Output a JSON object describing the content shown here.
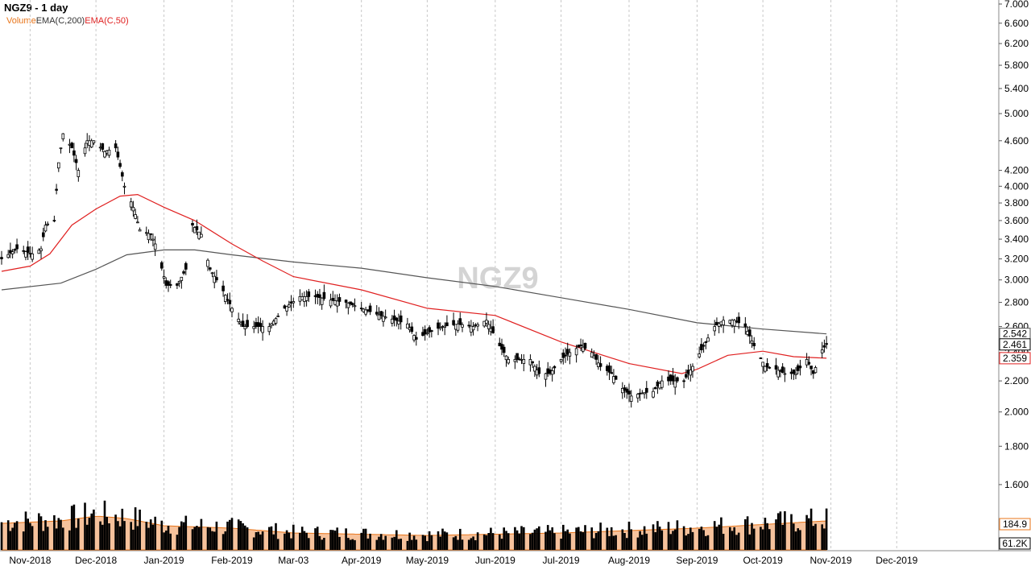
{
  "header": {
    "title": "NGZ9 - 1 day",
    "legend": [
      {
        "label": "Volume",
        "color": "#e8751a"
      },
      {
        "label": "EMA(C,200)",
        "color": "#333333"
      },
      {
        "label": "EMA(C,50)",
        "color": "#e02020"
      }
    ]
  },
  "watermark": "NGZ9",
  "colors": {
    "candle": "#000000",
    "ema200": "#555555",
    "ema50": "#e02020",
    "volume_area": "#f6c29c",
    "volume_area_line": "#e8751a",
    "grid": "#c8c8c8",
    "watermark": "#d4d4d4"
  },
  "price_labels": {
    "ema200": "2.542",
    "last": "2.461",
    "ema50": "2.359",
    "vol_avg": "184.9",
    "vol_last": "61.2K"
  },
  "chart_data": {
    "type": "candlestick",
    "title": "NGZ9 - 1 day",
    "y_scale": "log",
    "ylim": [
      1.5,
      7.0
    ],
    "xlim": [
      "2018-10-19",
      "2019-12-31"
    ],
    "y_ticks": [
      "7.000",
      "6.600",
      "6.200",
      "5.800",
      "5.400",
      "5.000",
      "4.600",
      "4.200",
      "4.000",
      "3.800",
      "3.600",
      "3.400",
      "3.200",
      "3.000",
      "2.800",
      "2.600",
      "2.400",
      "2.200",
      "2.000",
      "1.800",
      "1.600"
    ],
    "x_ticks": [
      {
        "label": "Nov-2018",
        "date": "2018-11-01"
      },
      {
        "label": "Dec-2018",
        "date": "2018-12-01"
      },
      {
        "label": "Jan-2019",
        "date": "2019-01-01"
      },
      {
        "label": "Feb-2019",
        "date": "2019-02-01"
      },
      {
        "label": "Mar-03",
        "date": "2019-03-01"
      },
      {
        "label": "Apr-2019",
        "date": "2019-04-01"
      },
      {
        "label": "May-2019",
        "date": "2019-05-01"
      },
      {
        "label": "Jun-2019",
        "date": "2019-06-01"
      },
      {
        "label": "Jul-2019",
        "date": "2019-07-01"
      },
      {
        "label": "Aug-2019",
        "date": "2019-08-01"
      },
      {
        "label": "Sep-2019",
        "date": "2019-09-01"
      },
      {
        "label": "Oct-2019",
        "date": "2019-10-01"
      },
      {
        "label": "Nov-2019",
        "date": "2019-11-01"
      },
      {
        "label": "Dec-2019",
        "date": "2019-12-01"
      }
    ],
    "series_price_anchors": {
      "note_free_anchor_points": [
        [
          "2018-10-19",
          3.2
        ],
        [
          "2018-10-26",
          3.3
        ],
        [
          "2018-11-02",
          3.25
        ],
        [
          "2018-11-06",
          3.3
        ],
        [
          "2018-11-08",
          3.55
        ],
        [
          "2018-11-12",
          3.6
        ],
        [
          "2018-11-14",
          4.3
        ],
        [
          "2018-11-16",
          4.7
        ],
        [
          "2018-11-20",
          4.5
        ],
        [
          "2018-11-23",
          4.2
        ],
        [
          "2018-11-27",
          4.6
        ],
        [
          "2018-11-30",
          4.6
        ],
        [
          "2018-12-05",
          4.45
        ],
        [
          "2018-12-10",
          4.5
        ],
        [
          "2018-12-14",
          4.0
        ],
        [
          "2018-12-18",
          3.75
        ],
        [
          "2018-12-21",
          3.5
        ],
        [
          "2018-12-26",
          3.45
        ],
        [
          "2018-12-28",
          3.35
        ],
        [
          "2019-01-02",
          2.95
        ],
        [
          "2019-01-07",
          2.95
        ],
        [
          "2019-01-11",
          3.1
        ],
        [
          "2019-01-14",
          3.55
        ],
        [
          "2019-01-18",
          3.45
        ],
        [
          "2019-01-22",
          3.1
        ],
        [
          "2019-01-28",
          2.9
        ],
        [
          "2019-02-01",
          2.75
        ],
        [
          "2019-02-06",
          2.6
        ],
        [
          "2019-02-12",
          2.6
        ],
        [
          "2019-02-18",
          2.6
        ],
        [
          "2019-02-25",
          2.75
        ],
        [
          "2019-03-04",
          2.85
        ],
        [
          "2019-03-11",
          2.85
        ],
        [
          "2019-03-18",
          2.82
        ],
        [
          "2019-03-25",
          2.8
        ],
        [
          "2019-04-01",
          2.75
        ],
        [
          "2019-04-08",
          2.7
        ],
        [
          "2019-04-15",
          2.66
        ],
        [
          "2019-04-22",
          2.62
        ],
        [
          "2019-04-26",
          2.5
        ],
        [
          "2019-05-01",
          2.55
        ],
        [
          "2019-05-08",
          2.6
        ],
        [
          "2019-05-15",
          2.62
        ],
        [
          "2019-05-22",
          2.6
        ],
        [
          "2019-05-28",
          2.65
        ],
        [
          "2019-06-03",
          2.45
        ],
        [
          "2019-06-07",
          2.35
        ],
        [
          "2019-06-12",
          2.35
        ],
        [
          "2019-06-17",
          2.35
        ],
        [
          "2019-06-21",
          2.25
        ],
        [
          "2019-06-26",
          2.25
        ],
        [
          "2019-07-01",
          2.35
        ],
        [
          "2019-07-05",
          2.4
        ],
        [
          "2019-07-10",
          2.45
        ],
        [
          "2019-07-15",
          2.4
        ],
        [
          "2019-07-19",
          2.3
        ],
        [
          "2019-07-24",
          2.25
        ],
        [
          "2019-07-29",
          2.15
        ],
        [
          "2019-08-02",
          2.1
        ],
        [
          "2019-08-07",
          2.12
        ],
        [
          "2019-08-12",
          2.13
        ],
        [
          "2019-08-16",
          2.2
        ],
        [
          "2019-08-21",
          2.2
        ],
        [
          "2019-08-26",
          2.2
        ],
        [
          "2019-08-30",
          2.3
        ],
        [
          "2019-09-04",
          2.45
        ],
        [
          "2019-09-09",
          2.6
        ],
        [
          "2019-09-13",
          2.65
        ],
        [
          "2019-09-18",
          2.65
        ],
        [
          "2019-09-23",
          2.6
        ],
        [
          "2019-09-27",
          2.45
        ],
        [
          "2019-10-02",
          2.3
        ],
        [
          "2019-10-07",
          2.28
        ],
        [
          "2019-10-11",
          2.25
        ],
        [
          "2019-10-16",
          2.25
        ],
        [
          "2019-10-21",
          2.35
        ],
        [
          "2019-10-24",
          2.25
        ],
        [
          "2019-10-28",
          2.42
        ],
        [
          "2019-10-30",
          2.461
        ]
      ]
    },
    "series": [
      {
        "name": "EMA(C,200)",
        "points": [
          [
            "2018-10-19",
            2.91
          ],
          [
            "2018-11-15",
            2.97
          ],
          [
            "2018-12-01",
            3.1
          ],
          [
            "2018-12-15",
            3.24
          ],
          [
            "2019-01-01",
            3.29
          ],
          [
            "2019-01-15",
            3.29
          ],
          [
            "2019-02-01",
            3.24
          ],
          [
            "2019-03-01",
            3.17
          ],
          [
            "2019-04-01",
            3.11
          ],
          [
            "2019-05-01",
            3.02
          ],
          [
            "2019-06-01",
            2.94
          ],
          [
            "2019-07-01",
            2.84
          ],
          [
            "2019-08-01",
            2.74
          ],
          [
            "2019-09-01",
            2.63
          ],
          [
            "2019-10-01",
            2.58
          ],
          [
            "2019-10-30",
            2.542
          ]
        ]
      },
      {
        "name": "EMA(C,50)",
        "points": [
          [
            "2018-10-19",
            3.08
          ],
          [
            "2018-11-01",
            3.13
          ],
          [
            "2018-11-10",
            3.25
          ],
          [
            "2018-11-20",
            3.55
          ],
          [
            "2018-12-01",
            3.73
          ],
          [
            "2018-12-12",
            3.88
          ],
          [
            "2018-12-20",
            3.9
          ],
          [
            "2019-01-01",
            3.75
          ],
          [
            "2019-01-15",
            3.6
          ],
          [
            "2019-02-01",
            3.35
          ],
          [
            "2019-02-15",
            3.18
          ],
          [
            "2019-03-01",
            3.03
          ],
          [
            "2019-04-01",
            2.91
          ],
          [
            "2019-05-01",
            2.75
          ],
          [
            "2019-06-01",
            2.69
          ],
          [
            "2019-07-01",
            2.48
          ],
          [
            "2019-08-01",
            2.32
          ],
          [
            "2019-08-25",
            2.25
          ],
          [
            "2019-09-01",
            2.28
          ],
          [
            "2019-09-15",
            2.38
          ],
          [
            "2019-10-01",
            2.41
          ],
          [
            "2019-10-15",
            2.37
          ],
          [
            "2019-10-30",
            2.359
          ]
        ]
      }
    ],
    "volume": {
      "axis_labels": [
        "184.9",
        "61.2K"
      ],
      "avg_anchor_points": [
        [
          "2018-10-19",
          0.55
        ],
        [
          "2018-11-15",
          0.6
        ],
        [
          "2018-12-01",
          0.7
        ],
        [
          "2018-12-15",
          0.65
        ],
        [
          "2019-01-01",
          0.5
        ],
        [
          "2019-02-01",
          0.45
        ],
        [
          "2019-03-01",
          0.35
        ],
        [
          "2019-05-01",
          0.3
        ],
        [
          "2019-07-01",
          0.35
        ],
        [
          "2019-09-01",
          0.45
        ],
        [
          "2019-10-30",
          0.6
        ]
      ]
    }
  }
}
